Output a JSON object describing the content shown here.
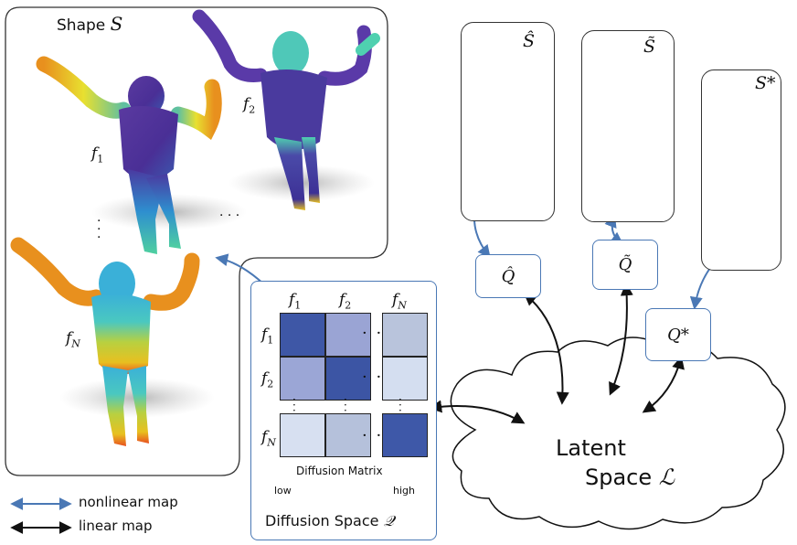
{
  "shape_panel": {
    "title_prefix": "Shape",
    "title_symbol": "S",
    "functions": [
      {
        "label": "f",
        "sub": "1"
      },
      {
        "label": "f",
        "sub": "2"
      },
      {
        "label": "f",
        "sub": "N"
      }
    ]
  },
  "reconstructions": [
    {
      "label": "Ŝ",
      "latent": "Q̂"
    },
    {
      "label": "S̃",
      "latent": "Q̃"
    },
    {
      "label": "S*",
      "latent": "Q*"
    }
  ],
  "diffusion": {
    "title": "Diffusion Space",
    "title_symbol": "𝒬",
    "matrix_caption": "Diffusion Matrix",
    "scale_low": "low",
    "scale_high": "high",
    "col_labels": [
      {
        "label": "f",
        "sub": "1"
      },
      {
        "label": "f",
        "sub": "2"
      },
      {
        "label": "f",
        "sub": "N"
      }
    ],
    "row_labels": [
      {
        "label": "f",
        "sub": "1"
      },
      {
        "label": "f",
        "sub": "2"
      },
      {
        "label": "f",
        "sub": "N"
      }
    ],
    "colors": {
      "r1": [
        "#3e57a6",
        "#9aa4d4",
        "#b9c4dc"
      ],
      "r2": [
        "#9ba6d6",
        "#3c55a4",
        "#d4def0"
      ],
      "r3": [
        "#d7e0f1",
        "#b5c1db",
        "#3e58a8"
      ]
    }
  },
  "latent": {
    "line1": "Latent",
    "line2": "Space",
    "symbol": "ℒ"
  },
  "legend": {
    "nonlinear": "nonlinear map",
    "linear": "linear map",
    "nonlinear_color": "#4a78b5",
    "linear_color": "#111111"
  }
}
